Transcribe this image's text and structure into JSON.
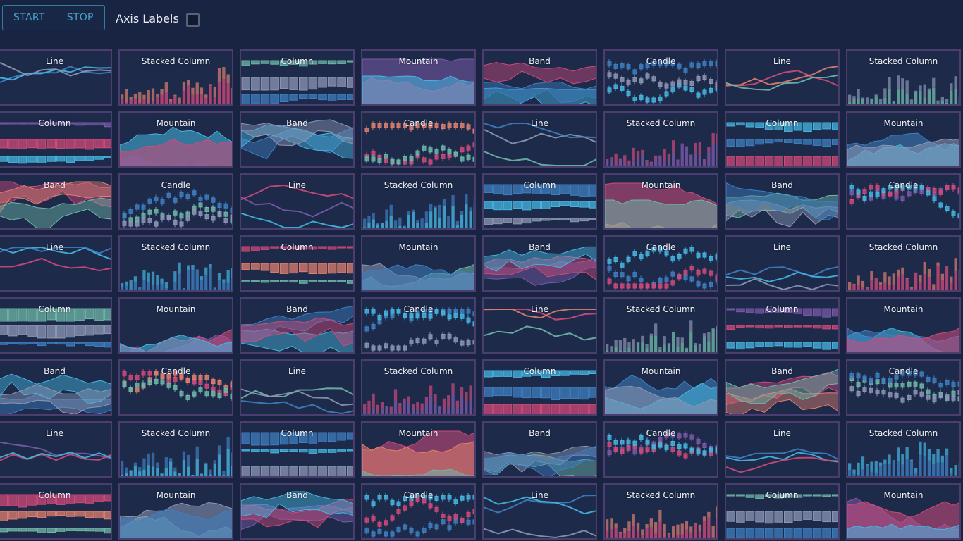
{
  "toolbar": {
    "start_label": "START",
    "stop_label": "STOP",
    "axis_labels_label": "Axis Labels",
    "axis_labels_checked": false
  },
  "grid": {
    "columns": 8,
    "rows": 8,
    "titles": [
      [
        "Line",
        "Stacked Column",
        "Column",
        "Mountain",
        "Band",
        "Candle",
        "Line",
        "Stacked Column"
      ],
      [
        "Column",
        "Mountain",
        "Band",
        "Candle",
        "Line",
        "Stacked Column",
        "Column",
        "Mountain"
      ],
      [
        "Band",
        "Candle",
        "Line",
        "Stacked Column",
        "Column",
        "Mountain",
        "Band",
        "Candle"
      ],
      [
        "Line",
        "Stacked Column",
        "Column",
        "Mountain",
        "Band",
        "Candle",
        "Line",
        "Stacked Column"
      ],
      [
        "Column",
        "Mountain",
        "Band",
        "Candle",
        "Line",
        "Stacked Column",
        "Column",
        "Mountain"
      ],
      [
        "Band",
        "Candle",
        "Line",
        "Stacked Column",
        "Column",
        "Mountain",
        "Band",
        "Candle"
      ],
      [
        "Line",
        "Stacked Column",
        "Column",
        "Mountain",
        "Band",
        "Candle",
        "Line",
        "Stacked Column"
      ],
      [
        "Column",
        "Mountain",
        "Band",
        "Candle",
        "Line",
        "Stacked Column",
        "Column",
        "Mountain"
      ]
    ]
  },
  "colors": {
    "blue": "#3f7fc0",
    "cyan": "#46b6e0",
    "pink": "#d04a7a",
    "salmon": "#e08070",
    "teal": "#6fb7a8",
    "purple": "#7a5aa8",
    "slate": "#8d97b5",
    "background": "#182442",
    "tile_border": "#4c3d6f"
  }
}
